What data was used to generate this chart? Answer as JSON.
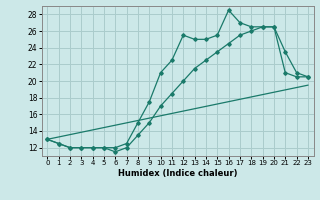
{
  "title": "",
  "xlabel": "Humidex (Indice chaleur)",
  "ylabel": "",
  "background_color": "#cce8e8",
  "grid_color": "#aacccc",
  "line_color": "#1a7a6a",
  "xlim": [
    -0.5,
    23.5
  ],
  "ylim": [
    11,
    29
  ],
  "yticks": [
    12,
    14,
    16,
    18,
    20,
    22,
    24,
    26,
    28
  ],
  "xticks": [
    0,
    1,
    2,
    3,
    4,
    5,
    6,
    7,
    8,
    9,
    10,
    11,
    12,
    13,
    14,
    15,
    16,
    17,
    18,
    19,
    20,
    21,
    22,
    23
  ],
  "series1_x": [
    0,
    1,
    2,
    3,
    4,
    5,
    6,
    7,
    8,
    9,
    10,
    11,
    12,
    13,
    14,
    15,
    16,
    17,
    18,
    19,
    20,
    21,
    22,
    23
  ],
  "series1_y": [
    13.0,
    12.5,
    12.0,
    12.0,
    12.0,
    12.0,
    12.0,
    12.5,
    15.0,
    17.5,
    21.0,
    22.5,
    25.5,
    25.0,
    25.0,
    25.5,
    28.5,
    27.0,
    26.5,
    26.5,
    26.5,
    23.5,
    21.0,
    20.5
  ],
  "series2_x": [
    0,
    1,
    2,
    3,
    4,
    5,
    6,
    7,
    8,
    9,
    10,
    11,
    12,
    13,
    14,
    15,
    16,
    17,
    18,
    19,
    20,
    21,
    22,
    23
  ],
  "series2_y": [
    13.0,
    12.5,
    12.0,
    12.0,
    12.0,
    12.0,
    11.5,
    12.0,
    13.5,
    15.0,
    17.0,
    18.5,
    20.0,
    21.5,
    22.5,
    23.5,
    24.5,
    25.5,
    26.0,
    26.5,
    26.5,
    21.0,
    20.5,
    20.5
  ],
  "series3_x": [
    0,
    23
  ],
  "series3_y": [
    13.0,
    19.5
  ]
}
